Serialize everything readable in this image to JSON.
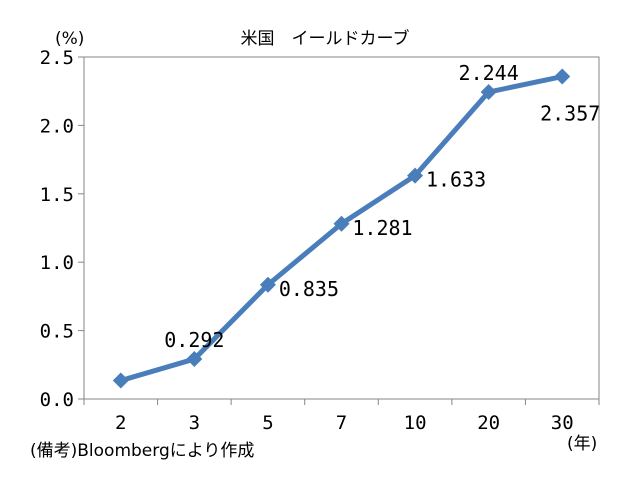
{
  "chart_data": {
    "type": "line",
    "title": "米国　イールドカーブ",
    "ylabel": "(%)",
    "xlabel": "(年)",
    "categories": [
      "2",
      "3",
      "5",
      "7",
      "10",
      "20",
      "30"
    ],
    "series": [
      {
        "values": [
          0.135,
          0.292,
          0.835,
          1.281,
          1.633,
          2.244,
          2.357
        ],
        "labels": [
          "",
          "0.292",
          "0.835",
          "1.281",
          "1.633",
          "2.244",
          "2.357"
        ],
        "color": "#4a7ebb",
        "marker": "diamond"
      }
    ],
    "ylim": [
      0,
      2.5
    ],
    "yticks": [
      "0.0",
      "0.5",
      "1.0",
      "1.5",
      "2.0",
      "2.5"
    ],
    "grid": false,
    "legend": "none"
  },
  "source_note": "(備考)Bloombergにより作成"
}
